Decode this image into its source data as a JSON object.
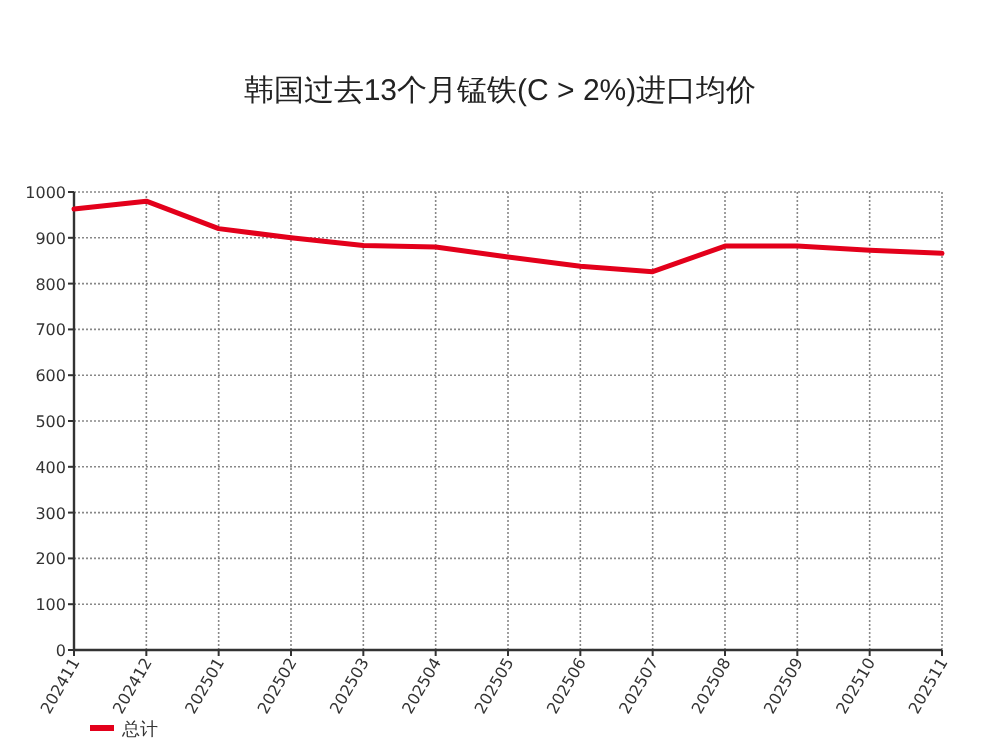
{
  "chart_data": {
    "type": "line",
    "title": "韩国过去13个月锰铁(C > 2%)进口均价",
    "categories": [
      "202411",
      "202412",
      "202501",
      "202502",
      "202503",
      "202504",
      "202505",
      "202506",
      "202507",
      "202508",
      "202509",
      "202510",
      "202511"
    ],
    "series": [
      {
        "name": "总计",
        "color": "#e3001b",
        "values": [
          963,
          980,
          920,
          900,
          883,
          880,
          858,
          838,
          826,
          882,
          882,
          873,
          866
        ]
      }
    ],
    "ylim": [
      0,
      1000
    ],
    "yticks": [
      0,
      100,
      200,
      300,
      400,
      500,
      600,
      700,
      800,
      900,
      1000
    ],
    "grid": true,
    "legend": "bottom left",
    "marker": "none",
    "line_style": "solid"
  }
}
